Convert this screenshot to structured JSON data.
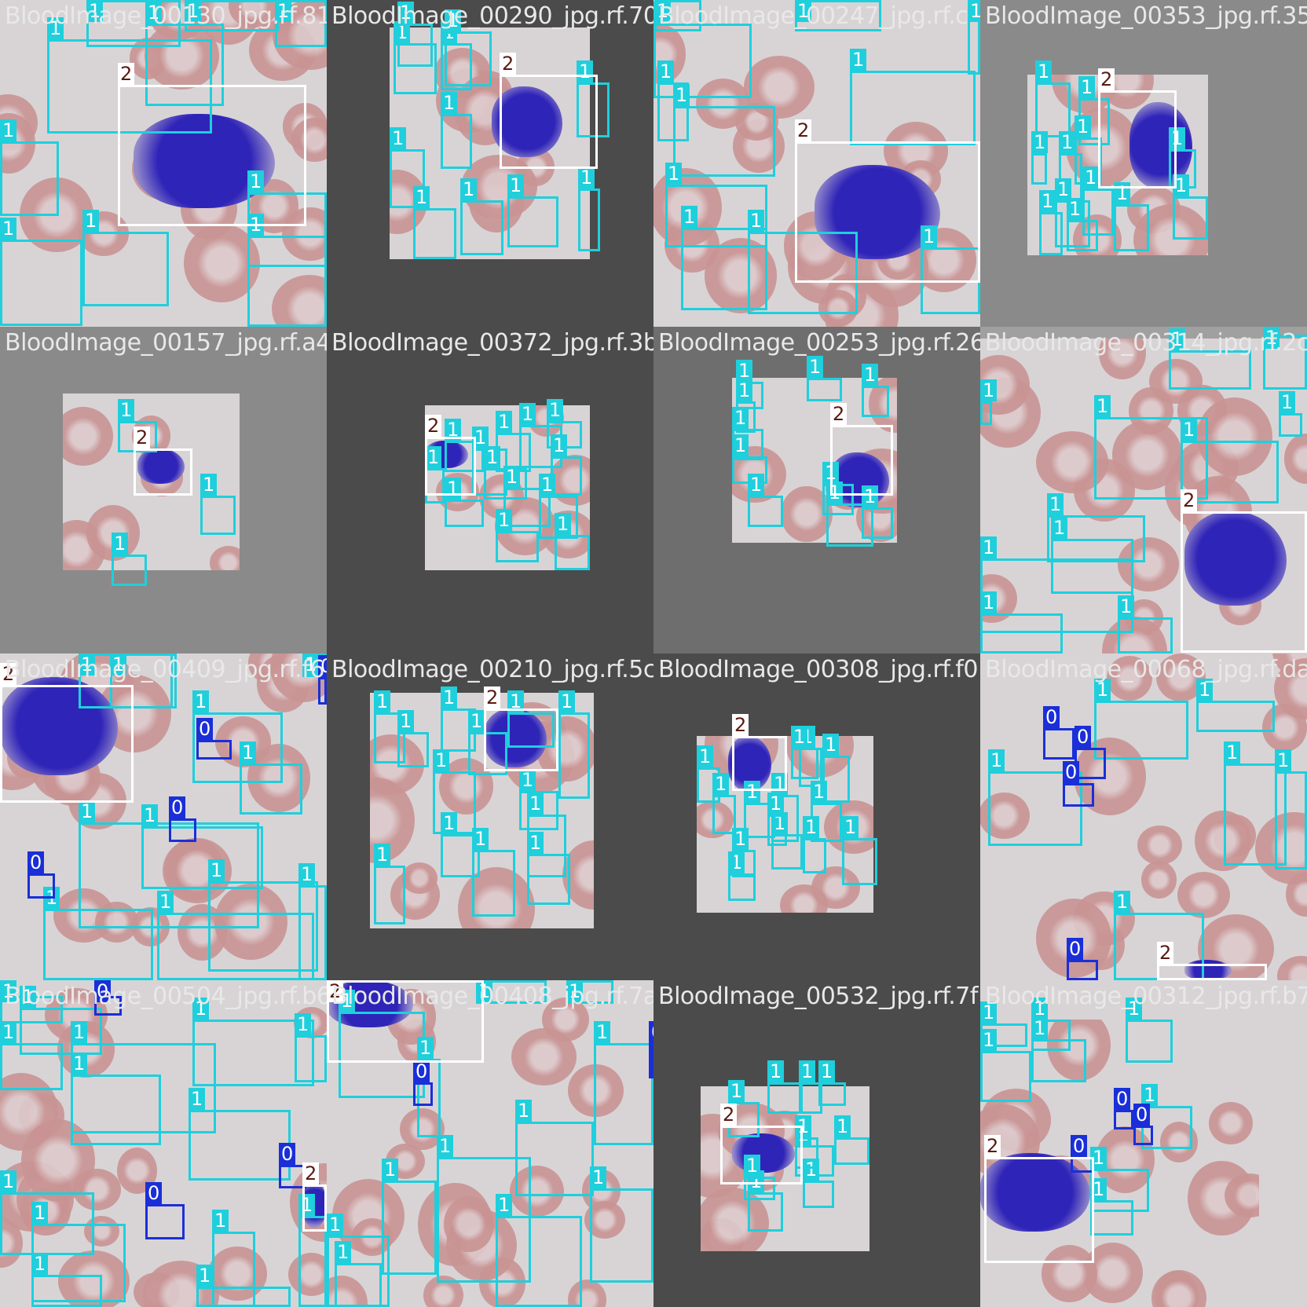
{
  "colors": {
    "class_0": "#1a2fd8",
    "class_1": "#1fcfdc",
    "class_2": "#ffffff",
    "label_1_text": "#ffffff",
    "label_0_text": "#ffffff",
    "label_2_text": "#5a1a10",
    "padding_gray_light": "#8a8a8a",
    "padding_gray_dark": "#4b4b4b",
    "rbc": "#c99393",
    "plasma": "#d8d4d6",
    "nucleus": "#2f24b8"
  },
  "class_labels": {
    "c0": "0",
    "c1": "1",
    "c2": "2"
  },
  "tiles": [
    {
      "id": 0,
      "caption": "BloodImage_00130_jpg.rf.81"
    },
    {
      "id": 1,
      "caption": "BloodImage_00290_jpg.rf.70"
    },
    {
      "id": 2,
      "caption": "BloodImage_00247_jpg.rf.c"
    },
    {
      "id": 3,
      "caption": "BloodImage_00353_jpg.rf.35"
    },
    {
      "id": 4,
      "caption": "BloodImage_00157_jpg.rf.a4"
    },
    {
      "id": 5,
      "caption": "BloodImage_00372_jpg.rf.3b"
    },
    {
      "id": 6,
      "caption": "BloodImage_00253_jpg.rf.26"
    },
    {
      "id": 7,
      "caption": "BloodImage_00314_jpg.rf.2c"
    },
    {
      "id": 8,
      "caption": "BloodImage_00409_jpg.rf.f6"
    },
    {
      "id": 9,
      "caption": "BloodImage_00210_jpg.rf.5c"
    },
    {
      "id": 10,
      "caption": "BloodImage_00308_jpg.rf.f0"
    },
    {
      "id": 11,
      "caption": "BloodImage_00068_jpg.rf.da"
    },
    {
      "id": 12,
      "caption": "BloodImage_00504_jpg.rf.b6"
    },
    {
      "id": 13,
      "caption": "BloodImage_00408_jpg.rf.7a"
    },
    {
      "id": 14,
      "caption": "BloodImage_00532_jpg.rf.7f"
    },
    {
      "id": 15,
      "caption": "BloodImage_00312_jpg.rf.b7"
    }
  ]
}
